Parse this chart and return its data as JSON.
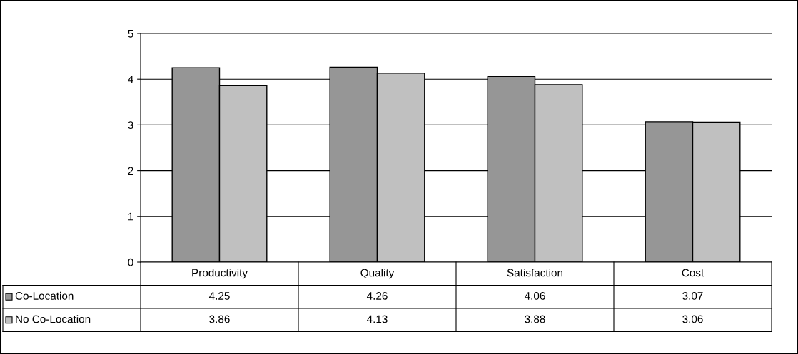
{
  "chart_data": {
    "type": "bar",
    "categories": [
      "Productivity",
      "Quality",
      "Satisfaction",
      "Cost"
    ],
    "series": [
      {
        "name": "Co-Location",
        "color": "#969696",
        "values": [
          4.25,
          4.26,
          4.06,
          3.07
        ]
      },
      {
        "name": "No Co-Location",
        "color": "#c0c0c0",
        "values": [
          3.86,
          4.13,
          3.88,
          3.06
        ]
      }
    ],
    "ylim": [
      0,
      5
    ],
    "yticks": [
      0,
      1,
      2,
      3,
      4,
      5
    ],
    "grid": "y",
    "data_labels": true,
    "legend": "bottom left"
  }
}
